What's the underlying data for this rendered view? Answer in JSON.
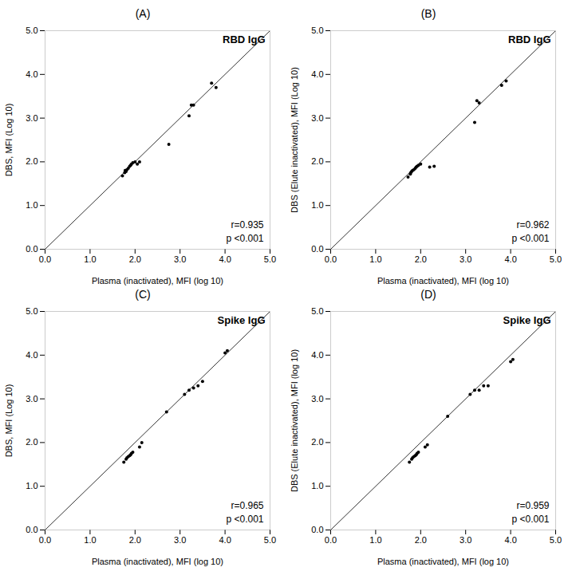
{
  "chart_data": [
    {
      "type": "scatter",
      "title": "(A)",
      "subtitle": "RBD IgG",
      "x_label": "Plasma (inactivated), MFI (log 10)",
      "y_label": "DBS, MFI (Log 10)",
      "annotations": [
        "r=0.935",
        "p <0.001"
      ],
      "x": [
        1.72,
        1.77,
        1.78,
        1.8,
        1.82,
        1.85,
        1.88,
        1.9,
        1.92,
        1.95,
        2.0,
        2.05,
        2.1,
        2.75,
        3.2,
        3.25,
        3.3,
        3.7,
        3.8
      ],
      "values": [
        1.68,
        1.75,
        1.8,
        1.78,
        1.82,
        1.85,
        1.9,
        1.92,
        1.95,
        1.98,
        2.0,
        1.95,
        2.0,
        2.4,
        3.05,
        3.3,
        3.3,
        3.8,
        3.7
      ],
      "color": "#000000",
      "identity_line": {
        "x": [
          0,
          5
        ],
        "values": [
          0,
          5
        ],
        "color": "#333333"
      },
      "xlim": [
        0,
        5
      ],
      "ylim": [
        0,
        5
      ],
      "xticks": [
        0,
        1,
        2,
        3,
        4,
        5
      ],
      "yticks": [
        0,
        1,
        2,
        3,
        4,
        5
      ],
      "grid": false
    },
    {
      "type": "scatter",
      "title": "(B)",
      "subtitle": "RBD IgG",
      "x_label": "Plasma (inactivated), MFI (log 10)",
      "y_label": "DBS (Elute inactivated), MFI (Log 10)",
      "annotations": [
        "r=0.962",
        "p <0.001"
      ],
      "x": [
        1.72,
        1.77,
        1.78,
        1.8,
        1.82,
        1.85,
        1.88,
        1.9,
        1.92,
        1.95,
        2.0,
        2.2,
        2.3,
        3.2,
        3.25,
        3.3,
        3.8,
        3.9
      ],
      "values": [
        1.65,
        1.72,
        1.75,
        1.78,
        1.8,
        1.82,
        1.85,
        1.88,
        1.9,
        1.92,
        1.95,
        1.88,
        1.9,
        2.9,
        3.4,
        3.35,
        3.75,
        3.85
      ],
      "color": "#000000",
      "identity_line": {
        "x": [
          0,
          5
        ],
        "values": [
          0,
          5
        ],
        "color": "#333333"
      },
      "xlim": [
        0,
        5
      ],
      "ylim": [
        0,
        5
      ],
      "xticks": [
        0,
        1,
        2,
        3,
        4,
        5
      ],
      "yticks": [
        0,
        1,
        2,
        3,
        4,
        5
      ],
      "grid": false
    },
    {
      "type": "scatter",
      "title": "(C)",
      "subtitle": "Spike IgG",
      "x_label": "Plasma (inactivated), MFI (log 10)",
      "y_label": "DBS, MFI (Log 10)",
      "annotations": [
        "r=0.965",
        "p <0.001"
      ],
      "x": [
        1.75,
        1.8,
        1.82,
        1.85,
        1.88,
        1.9,
        1.92,
        1.95,
        2.1,
        2.15,
        2.7,
        3.1,
        3.2,
        3.3,
        3.4,
        3.5,
        4.0,
        4.05
      ],
      "values": [
        1.55,
        1.62,
        1.65,
        1.68,
        1.7,
        1.72,
        1.75,
        1.78,
        1.9,
        2.0,
        2.7,
        3.1,
        3.2,
        3.25,
        3.3,
        3.4,
        4.05,
        4.1
      ],
      "color": "#000000",
      "identity_line": {
        "x": [
          0,
          5
        ],
        "values": [
          0,
          5
        ],
        "color": "#333333"
      },
      "xlim": [
        0,
        5
      ],
      "ylim": [
        0,
        5
      ],
      "xticks": [
        0,
        1,
        2,
        3,
        4,
        5
      ],
      "yticks": [
        0,
        1,
        2,
        3,
        4,
        5
      ],
      "grid": false
    },
    {
      "type": "scatter",
      "title": "(D)",
      "subtitle": "Spike IgG",
      "x_label": "Plasma (inactivated), MFI (log 10)",
      "y_label": "DBS (Elute inactivated), MFI (log 10)",
      "annotations": [
        "r=0.959",
        "p <0.001"
      ],
      "x": [
        1.75,
        1.8,
        1.82,
        1.85,
        1.88,
        1.9,
        1.92,
        1.95,
        2.1,
        2.15,
        2.6,
        3.1,
        3.2,
        3.3,
        3.4,
        3.5,
        4.0,
        4.05
      ],
      "values": [
        1.55,
        1.62,
        1.65,
        1.68,
        1.7,
        1.72,
        1.75,
        1.78,
        1.9,
        1.95,
        2.6,
        3.1,
        3.2,
        3.2,
        3.3,
        3.3,
        3.85,
        3.9
      ],
      "color": "#000000",
      "identity_line": {
        "x": [
          0,
          5
        ],
        "values": [
          0,
          5
        ],
        "color": "#333333"
      },
      "xlim": [
        0,
        5
      ],
      "ylim": [
        0,
        5
      ],
      "xticks": [
        0,
        1,
        2,
        3,
        4,
        5
      ],
      "yticks": [
        0,
        1,
        2,
        3,
        4,
        5
      ],
      "grid": false
    }
  ]
}
